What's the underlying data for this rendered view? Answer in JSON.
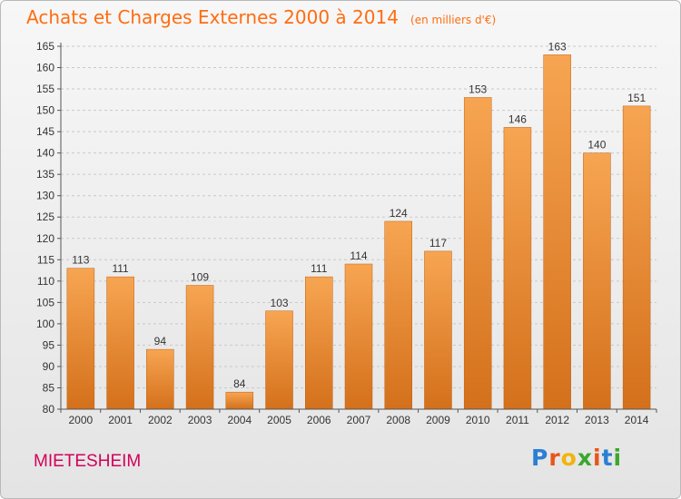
{
  "chart_data": {
    "type": "bar",
    "title": "Achats et Charges Externes 2000 à 2014",
    "subtitle": "(en milliers d'€)",
    "categories": [
      "2000",
      "2001",
      "2002",
      "2003",
      "2004",
      "2005",
      "2006",
      "2007",
      "2008",
      "2009",
      "2010",
      "2011",
      "2012",
      "2013",
      "2014"
    ],
    "values": [
      113,
      111,
      94,
      109,
      84,
      103,
      111,
      114,
      124,
      117,
      153,
      146,
      163,
      140,
      151
    ],
    "ylim": [
      80,
      165
    ],
    "yticks": [
      80,
      85,
      90,
      95,
      100,
      105,
      110,
      115,
      120,
      125,
      130,
      135,
      140,
      145,
      150,
      155,
      160,
      165
    ],
    "grid": true,
    "bar_color_top": "#f7a552",
    "bar_color_bottom": "#d4701b",
    "xlabel": "",
    "ylabel": ""
  },
  "location": "MIETESHEIM",
  "logo": {
    "letters": [
      "P",
      "r",
      "o",
      "x",
      "i",
      "t",
      "i"
    ],
    "colors": [
      "#2a7fd4",
      "#e8561a",
      "#f2b40a",
      "#3aa82d",
      "#e8561a",
      "#2a7fd4",
      "#3aa82d"
    ]
  }
}
